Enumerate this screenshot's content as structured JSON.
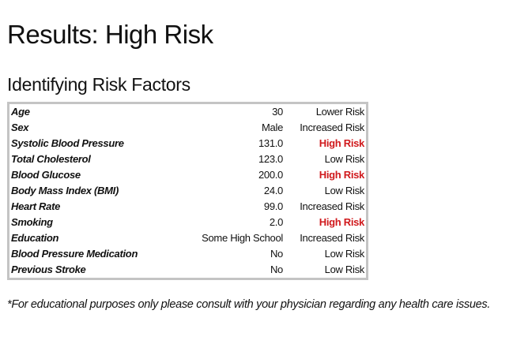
{
  "page": {
    "title": "Results: High Risk",
    "section_title": "Identifying Risk Factors",
    "disclaimer": "*For educational purposes only please consult with your physician regarding any health care issues."
  },
  "colors": {
    "high_risk": "#d0191c",
    "table_border": "#c4c4c4",
    "text": "#111111"
  },
  "risk_factors": [
    {
      "factor": "Age",
      "value": "30",
      "level": "Lower Risk",
      "high": false
    },
    {
      "factor": "Sex",
      "value": "Male",
      "level": "Increased Risk",
      "high": false
    },
    {
      "factor": "Systolic Blood Pressure",
      "value": "131.0",
      "level": "High Risk",
      "high": true
    },
    {
      "factor": "Total Cholesterol",
      "value": "123.0",
      "level": "Low Risk",
      "high": false
    },
    {
      "factor": "Blood Glucose",
      "value": "200.0",
      "level": "High Risk",
      "high": true
    },
    {
      "factor": "Body Mass Index (BMI)",
      "value": "24.0",
      "level": "Low Risk",
      "high": false
    },
    {
      "factor": "Heart Rate",
      "value": "99.0",
      "level": "Increased Risk",
      "high": false
    },
    {
      "factor": "Smoking",
      "value": "2.0",
      "level": "High Risk",
      "high": true
    },
    {
      "factor": "Education",
      "value": "Some High School",
      "level": "Increased Risk",
      "high": false
    },
    {
      "factor": "Blood Pressure Medication",
      "value": "No",
      "level": "Low Risk",
      "high": false
    },
    {
      "factor": "Previous Stroke",
      "value": "No",
      "level": "Low Risk",
      "high": false
    }
  ]
}
